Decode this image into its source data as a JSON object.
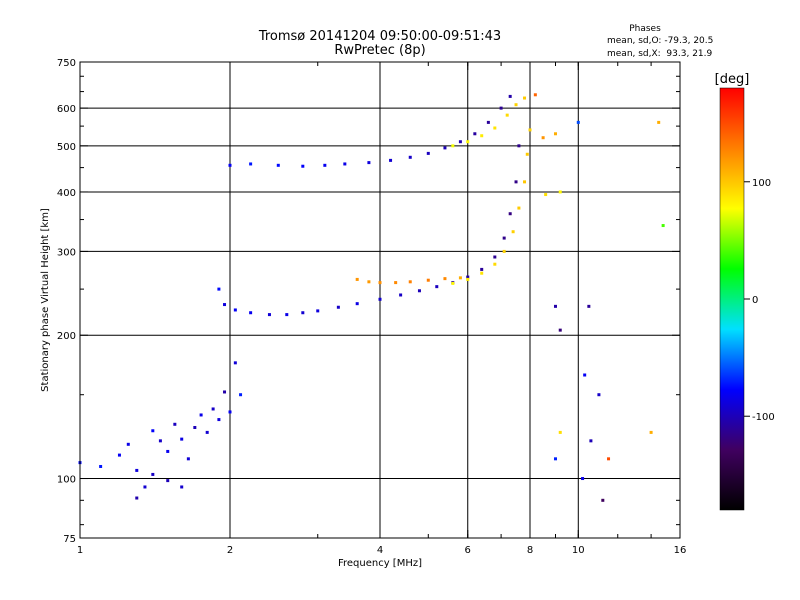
{
  "chart_data": {
    "type": "scatter",
    "title": "Tromsø 20141204 09:50:00-09:51:43",
    "subtitle": "RwPretec (8p)",
    "xlabel": "Frequency [MHz]",
    "ylabel": "Stationary phase Virtual Height [km]",
    "x_scale": "log",
    "y_scale": "log",
    "xlim": [
      1,
      16
    ],
    "ylim": [
      75,
      750
    ],
    "x_ticks": [
      1,
      2,
      4,
      6,
      8,
      10,
      16
    ],
    "y_ticks": [
      75,
      100,
      200,
      300,
      400,
      500,
      600,
      750
    ],
    "x_gridlines": [
      2,
      4,
      6,
      8,
      10
    ],
    "y_gridlines": [
      100,
      200,
      300,
      400,
      500,
      600
    ],
    "grid": true,
    "phase_stats": {
      "title": "Phases",
      "line_o": "mean, sd,O: -79.3, 20.5",
      "line_x": "mean, sd,X:  93.3, 21.9"
    },
    "colorbar": {
      "label": "[deg]",
      "range": [
        -180,
        180
      ],
      "ticks": [
        100,
        0,
        -100
      ],
      "colors": [
        "#ff0000",
        "#ff8000",
        "#ffff00",
        "#00ff00",
        "#00e0ff",
        "#0000ff",
        "#400060",
        "#000000"
      ]
    },
    "series": [
      {
        "points": [
          [
            1.0,
            108,
            -75
          ],
          [
            1.1,
            106,
            -72
          ],
          [
            1.2,
            112,
            -80
          ],
          [
            1.25,
            118,
            -85
          ],
          [
            1.3,
            104,
            -88
          ],
          [
            1.35,
            96,
            -92
          ],
          [
            1.4,
            126,
            -78
          ],
          [
            1.45,
            120,
            -95
          ],
          [
            1.5,
            114,
            -82
          ],
          [
            1.55,
            130,
            -98
          ],
          [
            1.6,
            121,
            -86
          ],
          [
            1.65,
            110,
            -90
          ],
          [
            1.7,
            128,
            -100
          ],
          [
            1.75,
            136,
            -84
          ],
          [
            1.8,
            125,
            -92
          ],
          [
            1.85,
            140,
            -95
          ],
          [
            1.9,
            133,
            -88
          ],
          [
            1.95,
            152,
            -105
          ],
          [
            2.0,
            138,
            -80
          ],
          [
            2.05,
            175,
            -90
          ],
          [
            2.1,
            150,
            -70
          ],
          [
            1.4,
            102,
            -96
          ],
          [
            1.5,
            99,
            -100
          ],
          [
            1.6,
            96,
            -93
          ],
          [
            1.3,
            91,
            -104
          ]
        ]
      },
      {
        "points": [
          [
            1.9,
            250,
            -75
          ],
          [
            1.95,
            232,
            -88
          ],
          [
            2.05,
            226,
            -80
          ],
          [
            2.2,
            223,
            -82
          ],
          [
            2.4,
            221,
            -90
          ],
          [
            2.6,
            221,
            -85
          ],
          [
            2.8,
            223,
            -92
          ],
          [
            3.0,
            225,
            -88
          ],
          [
            3.3,
            229,
            -95
          ],
          [
            3.6,
            233,
            -86
          ],
          [
            4.0,
            238,
            -92
          ],
          [
            4.4,
            243,
            -96
          ],
          [
            4.8,
            248,
            -100
          ],
          [
            5.2,
            253,
            -98
          ],
          [
            5.6,
            258,
            -105
          ],
          [
            6.0,
            265,
            -108
          ],
          [
            6.4,
            275,
            -110
          ],
          [
            6.8,
            292,
            -112
          ],
          [
            7.1,
            320,
            -115
          ],
          [
            7.3,
            360,
            -118
          ],
          [
            7.5,
            420,
            -116
          ],
          [
            7.6,
            500,
            -114
          ]
        ]
      },
      {
        "points": [
          [
            3.6,
            262,
            120
          ],
          [
            3.8,
            259,
            118
          ],
          [
            4.0,
            258,
            122
          ],
          [
            4.3,
            258,
            125
          ],
          [
            4.6,
            259,
            128
          ],
          [
            5.0,
            261,
            130
          ],
          [
            5.4,
            263,
            125
          ],
          [
            5.8,
            264,
            110
          ]
        ]
      },
      {
        "points": [
          [
            5.6,
            257,
            80
          ],
          [
            6.0,
            262,
            85
          ],
          [
            6.4,
            270,
            88
          ],
          [
            6.8,
            282,
            92
          ],
          [
            7.1,
            300,
            95
          ],
          [
            7.4,
            330,
            96
          ],
          [
            7.6,
            370,
            98
          ],
          [
            7.8,
            420,
            100
          ],
          [
            7.9,
            480,
            98
          ],
          [
            8.0,
            540,
            95
          ]
        ]
      },
      {
        "points": [
          [
            2.0,
            455,
            -80
          ],
          [
            2.2,
            458,
            -72
          ],
          [
            2.5,
            455,
            -75
          ],
          [
            2.8,
            453,
            -78
          ],
          [
            3.1,
            455,
            -82
          ],
          [
            3.4,
            458,
            -85
          ],
          [
            3.8,
            461,
            -88
          ],
          [
            4.2,
            466,
            -92
          ],
          [
            4.6,
            473,
            -95
          ],
          [
            5.0,
            482,
            -98
          ],
          [
            5.4,
            495,
            -100
          ],
          [
            5.8,
            510,
            -102
          ],
          [
            6.2,
            530,
            -108
          ],
          [
            6.6,
            560,
            -110
          ],
          [
            7.0,
            600,
            -112
          ],
          [
            7.3,
            635,
            -105
          ]
        ]
      },
      {
        "points": [
          [
            5.6,
            500,
            75
          ],
          [
            6.0,
            510,
            80
          ],
          [
            6.4,
            525,
            85
          ],
          [
            6.8,
            545,
            88
          ],
          [
            7.2,
            580,
            92
          ],
          [
            7.5,
            610,
            95
          ],
          [
            7.8,
            630,
            98
          ]
        ]
      },
      {
        "points": [
          [
            8.2,
            640,
            140
          ],
          [
            8.5,
            520,
            120
          ],
          [
            9.0,
            530,
            110
          ],
          [
            8.6,
            395,
            90
          ],
          [
            9.2,
            400,
            80
          ],
          [
            10.0,
            560,
            -60
          ],
          [
            10.5,
            230,
            -110
          ],
          [
            9.0,
            230,
            -105
          ],
          [
            9.2,
            205,
            -120
          ],
          [
            10.3,
            165,
            -80
          ],
          [
            11.0,
            150,
            -95
          ],
          [
            10.6,
            120,
            -100
          ],
          [
            10.2,
            100,
            -85
          ],
          [
            11.2,
            90,
            -130
          ],
          [
            9.2,
            125,
            90
          ],
          [
            14.5,
            560,
            110
          ],
          [
            14.8,
            340,
            40
          ],
          [
            14.0,
            125,
            110
          ],
          [
            9.0,
            110,
            -70
          ],
          [
            11.5,
            110,
            150
          ]
        ]
      }
    ]
  }
}
